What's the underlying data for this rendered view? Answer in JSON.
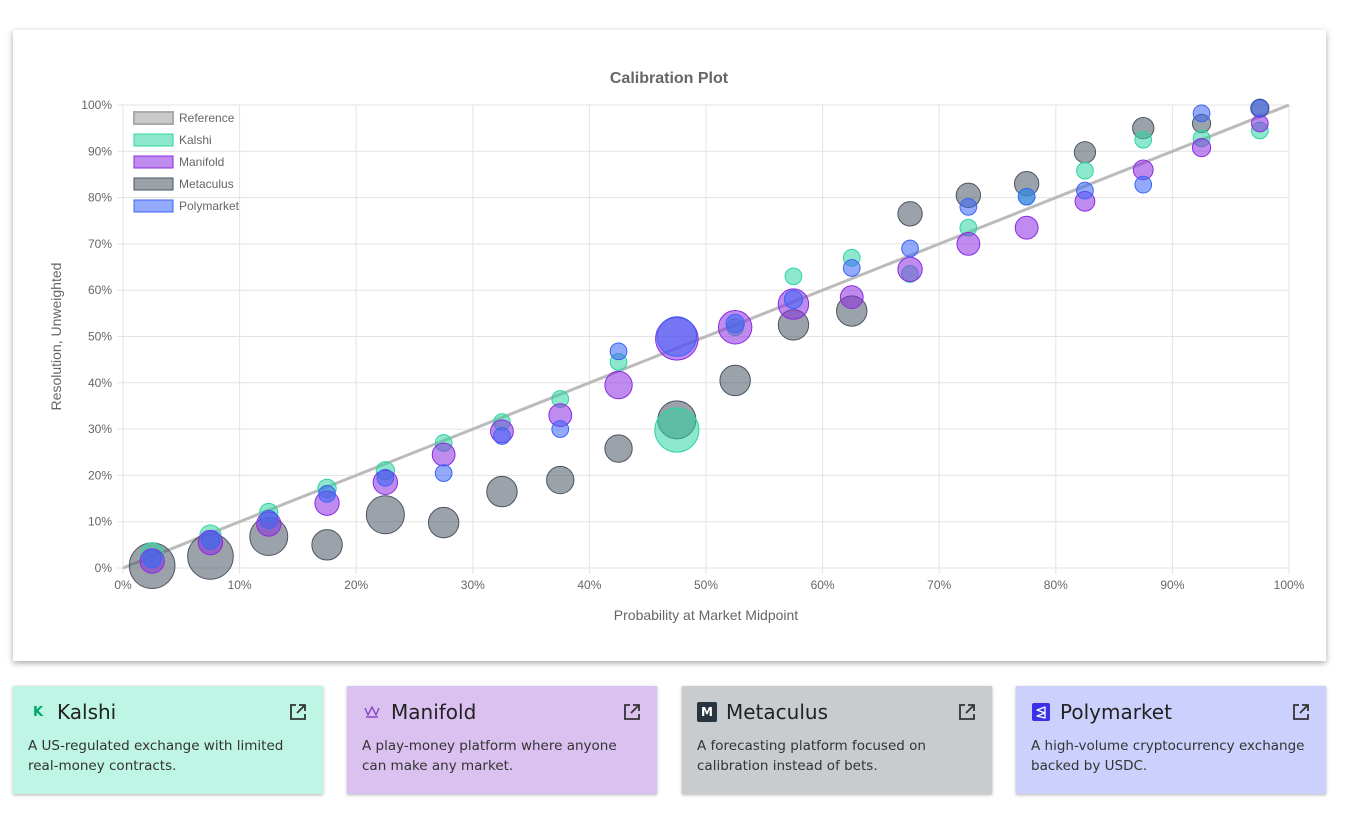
{
  "chart_data": {
    "type": "scatter",
    "title": "Calibration Plot",
    "xlabel": "Probability at Market Midpoint",
    "ylabel": "Resolution, Unweighted",
    "xlim": [
      0,
      100
    ],
    "ylim": [
      0,
      100
    ],
    "x_ticks": [
      "0%",
      "10%",
      "20%",
      "30%",
      "40%",
      "50%",
      "60%",
      "70%",
      "80%",
      "90%",
      "100%"
    ],
    "y_ticks": [
      "0%",
      "10%",
      "20%",
      "30%",
      "40%",
      "50%",
      "60%",
      "70%",
      "80%",
      "90%",
      "100%"
    ],
    "grid": true,
    "legend_position": "top-left",
    "legend": [
      "Reference",
      "Kalshi",
      "Manifold",
      "Metaculus",
      "Polymarket"
    ],
    "reference_line": {
      "name": "Reference",
      "points": [
        [
          0,
          0
        ],
        [
          100,
          100
        ]
      ],
      "color": "#bbbbbb"
    },
    "series": [
      {
        "name": "Metaculus",
        "color": "#4b5563",
        "points": [
          [
            2.5,
            0.5,
            3
          ],
          [
            7.5,
            2.5,
            3
          ],
          [
            12.5,
            6.8,
            2.5
          ],
          [
            17.5,
            5,
            2
          ],
          [
            22.5,
            11.5,
            2.5
          ],
          [
            27.5,
            9.8,
            2
          ],
          [
            32.5,
            16.5,
            2
          ],
          [
            37.5,
            19,
            1.8
          ],
          [
            42.5,
            25.8,
            1.8
          ],
          [
            47.5,
            32,
            2.5
          ],
          [
            52.5,
            40.5,
            2
          ],
          [
            57.5,
            52.5,
            2
          ],
          [
            62.5,
            55.5,
            2
          ],
          [
            67.5,
            76.5,
            1.6
          ],
          [
            72.5,
            80.5,
            1.6
          ],
          [
            77.5,
            83,
            1.6
          ],
          [
            82.5,
            89.8,
            1.4
          ],
          [
            87.5,
            95,
            1.4
          ],
          [
            92.5,
            96,
            1.2
          ],
          [
            97.5,
            99.3,
            1.2
          ]
        ]
      },
      {
        "name": "Kalshi",
        "color": "#2dd4a4",
        "points": [
          [
            2.5,
            3,
            1.5
          ],
          [
            7.5,
            7,
            1.4
          ],
          [
            12.5,
            12,
            1.2
          ],
          [
            17.5,
            17.2,
            1.2
          ],
          [
            22.5,
            21,
            1.2
          ],
          [
            27.5,
            27,
            1.1
          ],
          [
            32.5,
            31.5,
            1.1
          ],
          [
            37.5,
            36.5,
            1.1
          ],
          [
            42.5,
            44.5,
            1.1
          ],
          [
            47.5,
            29.8,
            2.9
          ],
          [
            52.5,
            52,
            1.1
          ],
          [
            57.5,
            63,
            1.1
          ],
          [
            62.5,
            67,
            1.1
          ],
          [
            67.5,
            63.5,
            1.1
          ],
          [
            72.5,
            73.5,
            1.1
          ],
          [
            77.5,
            80.2,
            1.1
          ],
          [
            82.5,
            85.8,
            1.1
          ],
          [
            87.5,
            92.5,
            1.1
          ],
          [
            92.5,
            92.8,
            1.1
          ],
          [
            97.5,
            94.5,
            1.1
          ]
        ]
      },
      {
        "name": "Manifold",
        "color": "#8b2be2",
        "points": [
          [
            2.5,
            1.5,
            1.6
          ],
          [
            7.5,
            5.5,
            1.6
          ],
          [
            12.5,
            9.5,
            1.6
          ],
          [
            17.5,
            14,
            1.6
          ],
          [
            22.5,
            18.5,
            1.6
          ],
          [
            27.5,
            24.5,
            1.5
          ],
          [
            32.5,
            29.5,
            1.5
          ],
          [
            37.5,
            33,
            1.5
          ],
          [
            42.5,
            39.5,
            1.8
          ],
          [
            47.5,
            49.5,
            2.8
          ],
          [
            52.5,
            52,
            2.2
          ],
          [
            57.5,
            57,
            2
          ],
          [
            62.5,
            58.5,
            1.5
          ],
          [
            67.5,
            64.5,
            1.6
          ],
          [
            72.5,
            70,
            1.5
          ],
          [
            77.5,
            73.5,
            1.5
          ],
          [
            82.5,
            79.2,
            1.3
          ],
          [
            87.5,
            86,
            1.3
          ],
          [
            92.5,
            90.8,
            1.2
          ],
          [
            97.5,
            96,
            1.1
          ]
        ]
      },
      {
        "name": "Polymarket",
        "color": "#3b64f5",
        "points": [
          [
            2.5,
            2,
            1.2
          ],
          [
            7.5,
            6,
            1.2
          ],
          [
            12.5,
            10.5,
            1.2
          ],
          [
            17.5,
            16,
            1.1
          ],
          [
            22.5,
            19.5,
            1.1
          ],
          [
            27.5,
            20.5,
            1.1
          ],
          [
            32.5,
            28.5,
            1.1
          ],
          [
            37.5,
            30,
            1.1
          ],
          [
            42.5,
            46.8,
            1.1
          ],
          [
            47.5,
            50,
            2.6
          ],
          [
            52.5,
            52.8,
            1.2
          ],
          [
            57.5,
            58,
            1.2
          ],
          [
            62.5,
            64.8,
            1.1
          ],
          [
            67.5,
            69,
            1.1
          ],
          [
            72.5,
            78,
            1.1
          ],
          [
            77.5,
            80.2,
            1.1
          ],
          [
            82.5,
            81.5,
            1.1
          ],
          [
            87.5,
            82.8,
            1.1
          ],
          [
            92.5,
            98.2,
            1.1
          ],
          [
            97.5,
            99.3,
            1.1
          ]
        ]
      }
    ]
  },
  "cards": [
    {
      "name": "Kalshi",
      "description": "A US-regulated exchange with limited real-money contracts.",
      "bg": "#bef5e4",
      "logo_letter": "K",
      "logo_color": "#00a868",
      "icon": "kalshi-logo-icon"
    },
    {
      "name": "Manifold",
      "description": "A play-money platform where anyone can make any market.",
      "bg": "#dac1f0",
      "logo_letter": "",
      "logo_color": "#8b45c8",
      "icon": "manifold-logo-icon"
    },
    {
      "name": "Metaculus",
      "description": "A forecasting platform focused on calibration instead of bets.",
      "bg": "#c9cccf",
      "logo_letter": "M",
      "logo_color": "#283441",
      "icon": "metaculus-logo-icon"
    },
    {
      "name": "Polymarket",
      "description": "A high-volume cryptocurrency exchange backed by USDC.",
      "bg": "#cbd1fc",
      "logo_letter": "",
      "logo_color": "#3b32e8",
      "icon": "polymarket-logo-icon"
    }
  ]
}
